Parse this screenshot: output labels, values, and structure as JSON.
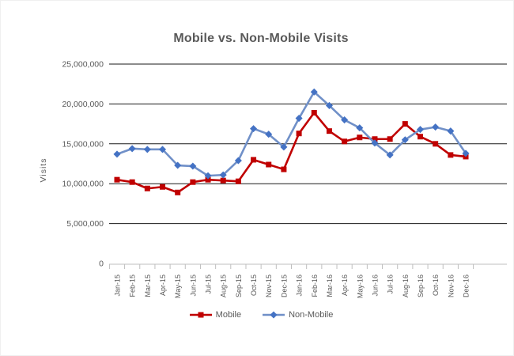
{
  "title": "Mobile vs. Non-Mobile Visits",
  "colors": {
    "title_text": "#595959",
    "axis_text": "#595959",
    "gridline": "#1a1a1a",
    "category_axis_line": "#bfbfbf",
    "mobile_line": "#c00000",
    "mobile_marker": "#c00000",
    "non_mobile_line": "#7090c8",
    "non_mobile_marker": "#4472c4"
  },
  "chart_data": {
    "type": "line",
    "title": "Mobile vs. Non-Mobile Visits",
    "xlabel": "",
    "ylabel": "Visits",
    "ylim": [
      0,
      25000000
    ],
    "ytick_interval": 5000000,
    "yticks": [
      {
        "value": 0,
        "label": "0"
      },
      {
        "value": 5000000,
        "label": "5,000,000"
      },
      {
        "value": 10000000,
        "label": "10,000,000"
      },
      {
        "value": 15000000,
        "label": "15,000,000"
      },
      {
        "value": 20000000,
        "label": "20,000,000"
      },
      {
        "value": 25000000,
        "label": "25,000,000"
      }
    ],
    "grid": true,
    "legend_position": "bottom",
    "categories": [
      "Jan-15",
      "Feb-15",
      "Mar-15",
      "Apr-15",
      "May-15",
      "Jun-15",
      "Jul-15",
      "Aug-15",
      "Sep-15",
      "Oct-15",
      "Nov-15",
      "Dec-15",
      "Jan-16",
      "Feb-16",
      "Mar-16",
      "Apr-16",
      "May-16",
      "Jun-16",
      "Jul-16",
      "Aug-16",
      "Sep-16",
      "Oct-16",
      "Nov-16",
      "Dec-16"
    ],
    "series": [
      {
        "name": "Mobile",
        "marker": "square",
        "line_color": "#c00000",
        "marker_color": "#c00000",
        "values": [
          10500000,
          10200000,
          9400000,
          9600000,
          8900000,
          10200000,
          10500000,
          10400000,
          10300000,
          13000000,
          12400000,
          11800000,
          16300000,
          18900000,
          16600000,
          15300000,
          15800000,
          15600000,
          15600000,
          17500000,
          15900000,
          15000000,
          13600000,
          13400000
        ]
      },
      {
        "name": "Non-Mobile",
        "marker": "diamond",
        "line_color": "#7090c8",
        "marker_color": "#4472c4",
        "values": [
          13700000,
          14400000,
          14300000,
          14300000,
          12300000,
          12200000,
          11000000,
          11100000,
          12900000,
          16900000,
          16200000,
          14600000,
          18200000,
          21500000,
          19800000,
          18000000,
          17000000,
          15100000,
          13600000,
          15500000,
          16800000,
          17100000,
          16600000,
          13800000
        ]
      }
    ]
  },
  "legend": {
    "items": [
      {
        "label": "Mobile"
      },
      {
        "label": "Non-Mobile"
      }
    ]
  }
}
